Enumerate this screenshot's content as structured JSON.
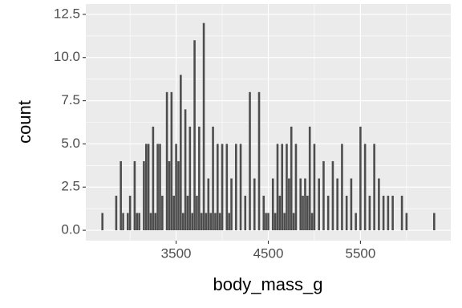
{
  "chart_data": {
    "type": "bar",
    "x_label": "body_mass_g",
    "y_label": "count",
    "x": [
      2700,
      2850,
      2900,
      2925,
      2975,
      3000,
      3050,
      3075,
      3100,
      3150,
      3175,
      3200,
      3225,
      3250,
      3275,
      3300,
      3325,
      3350,
      3400,
      3425,
      3450,
      3475,
      3500,
      3525,
      3550,
      3575,
      3600,
      3625,
      3650,
      3675,
      3700,
      3725,
      3750,
      3775,
      3800,
      3825,
      3850,
      3875,
      3900,
      3925,
      3950,
      3975,
      4000,
      4050,
      4075,
      4100,
      4150,
      4200,
      4250,
      4300,
      4350,
      4400,
      4450,
      4475,
      4500,
      4550,
      4575,
      4600,
      4625,
      4650,
      4675,
      4700,
      4725,
      4750,
      4775,
      4800,
      4850,
      4875,
      4900,
      4925,
      4950,
      4975,
      5000,
      5050,
      5100,
      5150,
      5200,
      5250,
      5300,
      5350,
      5400,
      5450,
      5500,
      5550,
      5600,
      5650,
      5700,
      5750,
      5800,
      5850,
      5950,
      6000,
      6300
    ],
    "values": [
      1,
      2,
      4,
      1,
      1,
      2,
      4,
      1,
      1,
      4,
      5,
      5,
      1,
      6,
      1,
      5,
      5,
      2,
      8,
      4,
      8,
      2,
      5,
      4,
      9,
      1,
      7,
      2,
      6,
      1,
      11,
      2,
      6,
      1,
      12,
      1,
      3,
      1,
      6,
      1,
      5,
      1,
      5,
      5,
      1,
      3,
      5,
      5,
      2,
      8,
      3,
      8,
      2,
      1,
      1,
      3,
      1,
      5,
      2,
      5,
      1,
      5,
      3,
      6,
      1,
      5,
      3,
      2,
      3,
      2,
      6,
      1,
      5,
      3,
      4,
      2,
      4,
      3,
      5,
      2,
      3,
      1,
      6,
      5,
      2,
      5,
      3,
      2,
      2,
      2,
      2,
      1,
      1
    ],
    "color": "#4d4d4d",
    "xlim": [
      2520,
      6480
    ],
    "xticks": [
      3500,
      4500,
      5500
    ],
    "ylim": [
      -0.6,
      13.1
    ],
    "yticks": [
      {
        "value": 0,
        "label": "0.0"
      },
      {
        "value": 2.5,
        "label": "2.5"
      },
      {
        "value": 5,
        "label": "5.0"
      },
      {
        "value": 7.5,
        "label": "7.5"
      },
      {
        "value": 10,
        "label": "10.0"
      },
      {
        "value": 12.5,
        "label": "12.5"
      }
    ],
    "grid": true
  }
}
